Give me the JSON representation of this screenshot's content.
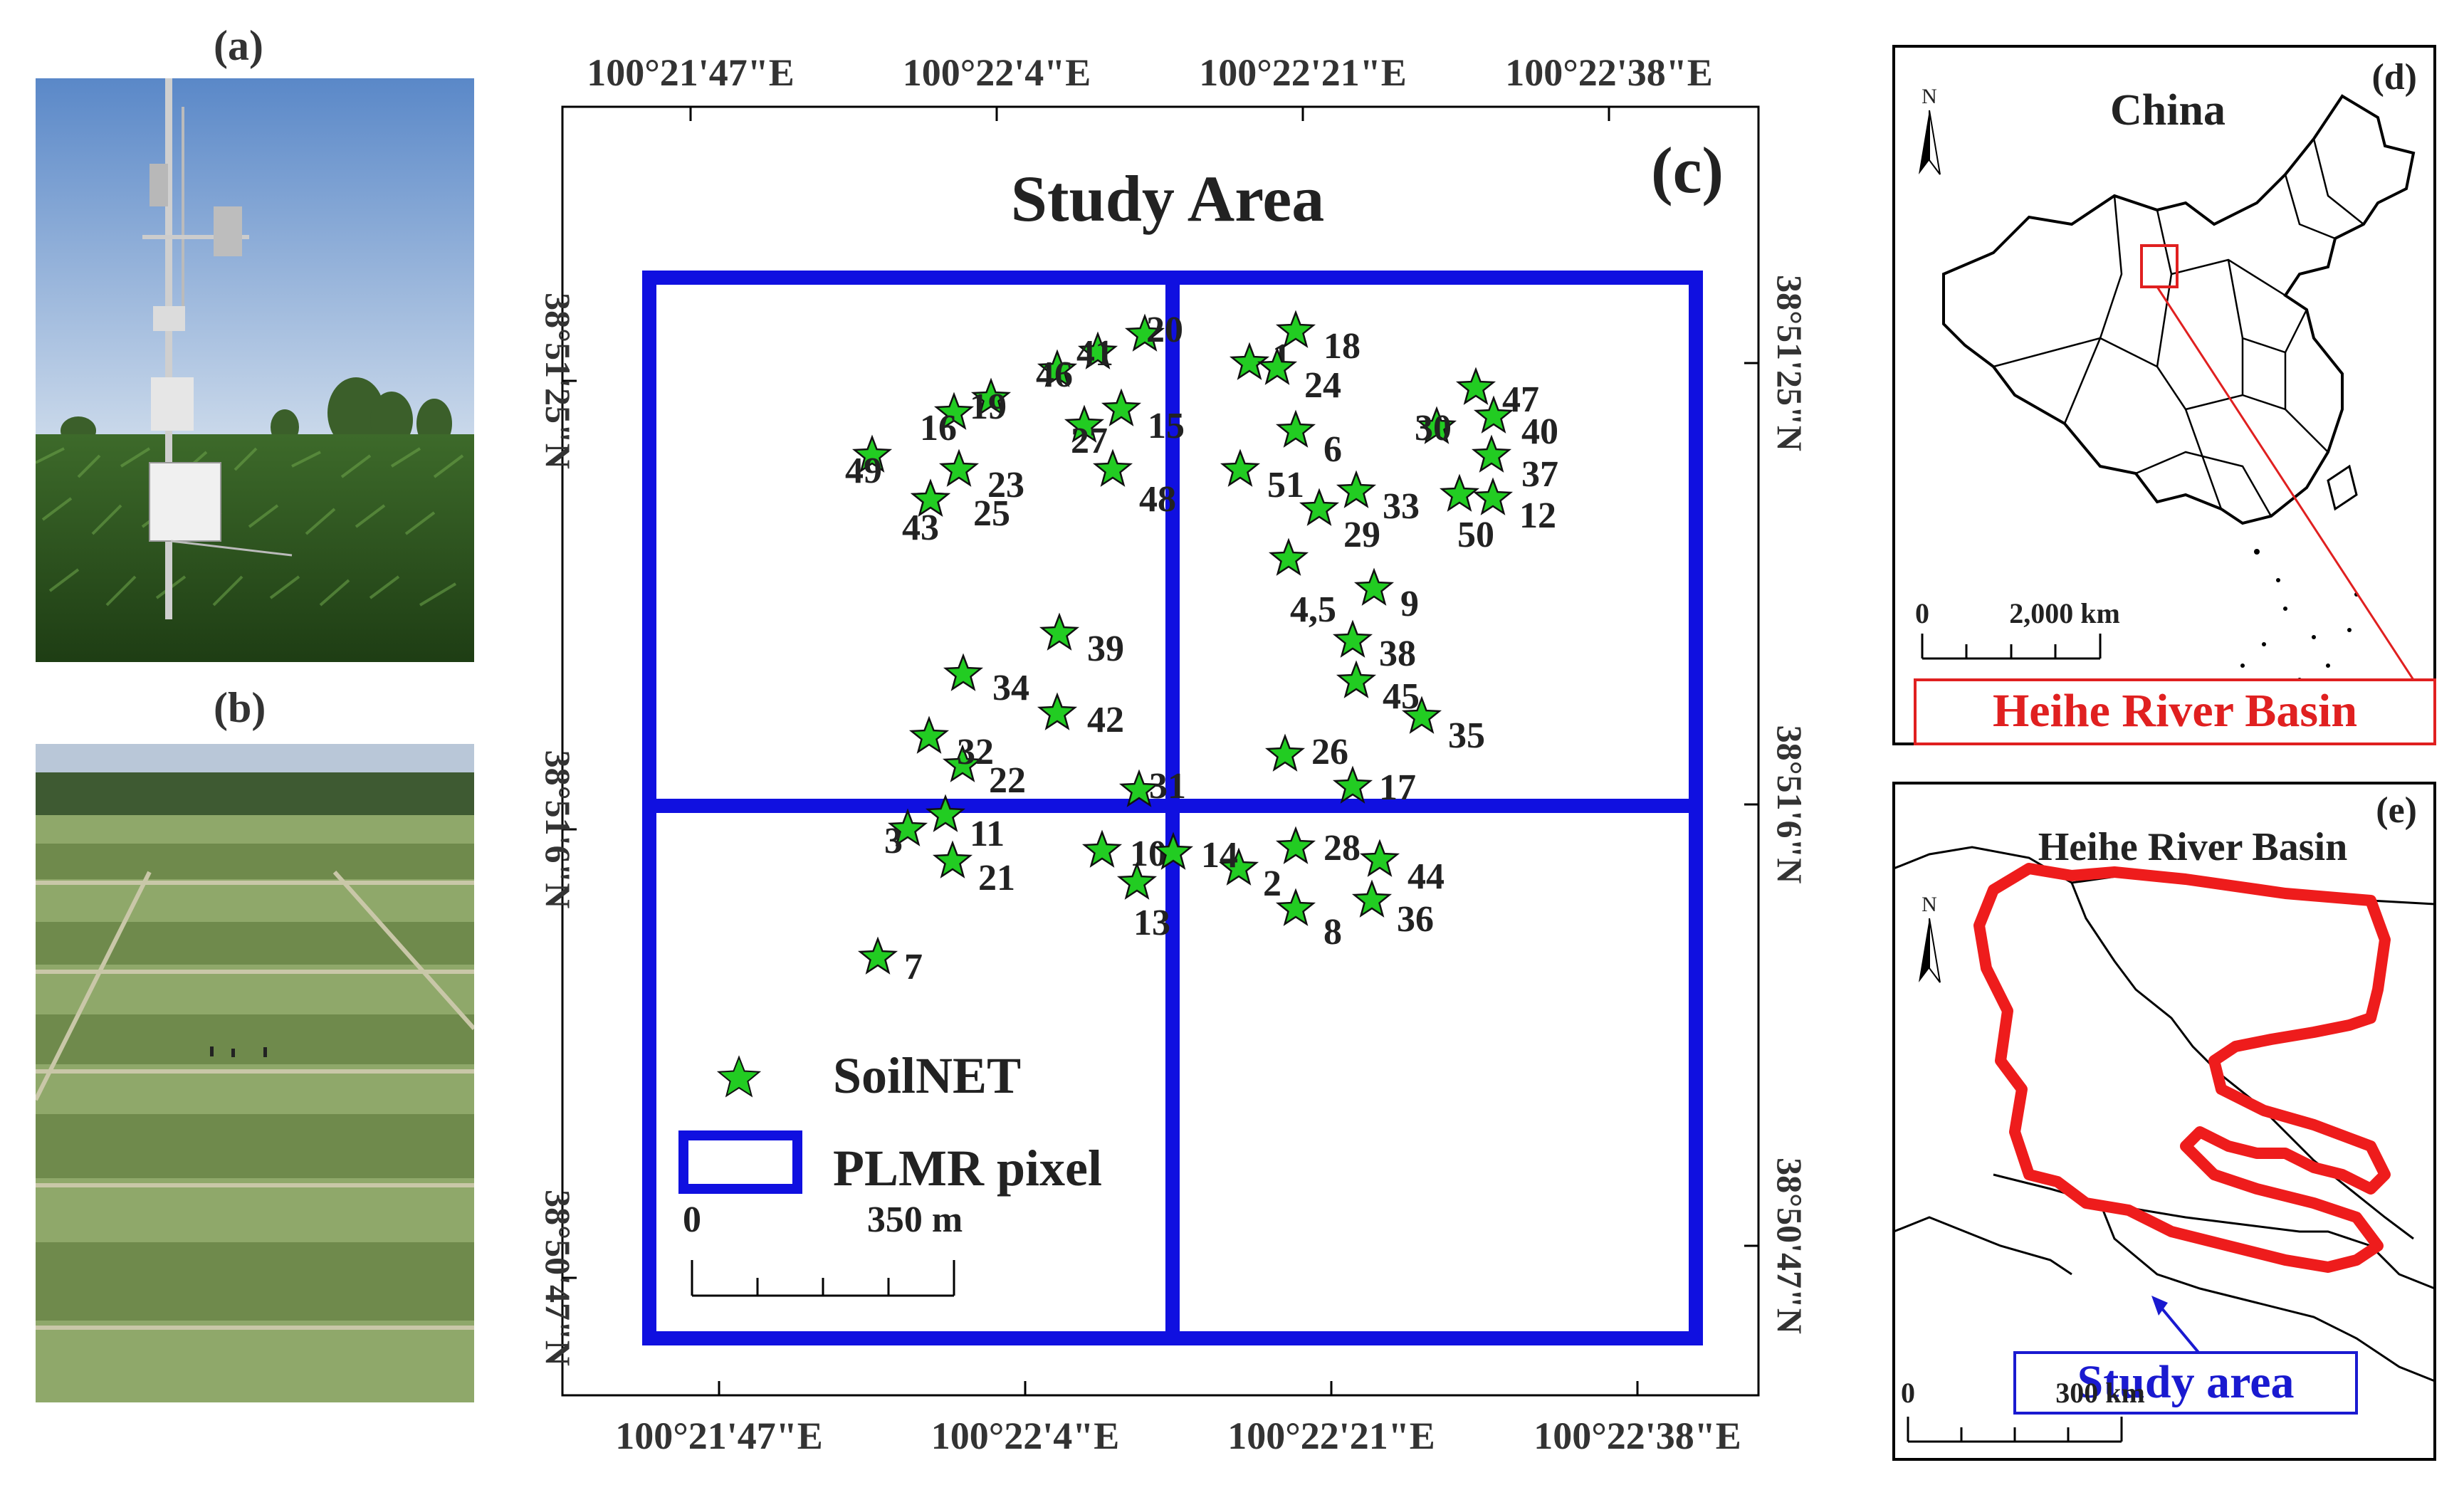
{
  "panels": {
    "a": {
      "label": "(a)"
    },
    "b": {
      "label": "(b)"
    },
    "c": {
      "label": "(c)"
    },
    "d": {
      "label": "(d)"
    },
    "e": {
      "label": "(e)"
    }
  },
  "study_map": {
    "title": "Study Area",
    "top_lon_ticks": [
      "100°21'47\"E",
      "100°22'4\"E",
      "100°22'21\"E",
      "100°22'38\"E"
    ],
    "bottom_lon_ticks": [
      "100°21'47\"E",
      "100°22'4\"E",
      "100°22'21\"E",
      "100°22'38\"E"
    ],
    "left_lat_ticks": [
      "38°51'25\"N",
      "38°51'6\"N",
      "38°50'47\"N"
    ],
    "right_lat_ticks": [
      "38°51'25\"N",
      "38°51'6\"N",
      "38°50'47\"N"
    ],
    "legend": {
      "soilnet": "SoilNET",
      "plmr": "PLMR pixel"
    },
    "scale": {
      "zero": "0",
      "end": "350 m"
    },
    "station_color": "#22cc22",
    "pixel_color": "#1010e0",
    "stations": [
      {
        "label": "1"
      },
      {
        "label": "2"
      },
      {
        "label": "3"
      },
      {
        "label": "4,5"
      },
      {
        "label": "6"
      },
      {
        "label": "7"
      },
      {
        "label": "8"
      },
      {
        "label": "9"
      },
      {
        "label": "10"
      },
      {
        "label": "11"
      },
      {
        "label": "12"
      },
      {
        "label": "13"
      },
      {
        "label": "14"
      },
      {
        "label": "15"
      },
      {
        "label": "16"
      },
      {
        "label": "17"
      },
      {
        "label": "18"
      },
      {
        "label": "19"
      },
      {
        "label": "20"
      },
      {
        "label": "21"
      },
      {
        "label": "22"
      },
      {
        "label": "23"
      },
      {
        "label": "24"
      },
      {
        "label": "25"
      },
      {
        "label": "26"
      },
      {
        "label": "27"
      },
      {
        "label": "28"
      },
      {
        "label": "29"
      },
      {
        "label": "30"
      },
      {
        "label": "31"
      },
      {
        "label": "32"
      },
      {
        "label": "33"
      },
      {
        "label": "34"
      },
      {
        "label": "35"
      },
      {
        "label": "36"
      },
      {
        "label": "37"
      },
      {
        "label": "38"
      },
      {
        "label": "39"
      },
      {
        "label": "40"
      },
      {
        "label": "41"
      },
      {
        "label": "42"
      },
      {
        "label": "43"
      },
      {
        "label": "44"
      },
      {
        "label": "45"
      },
      {
        "label": "46"
      },
      {
        "label": "47"
      },
      {
        "label": "48"
      },
      {
        "label": "49"
      },
      {
        "label": "50"
      },
      {
        "label": "51"
      }
    ]
  },
  "china_map": {
    "label": "China",
    "north": "N",
    "scale": {
      "zero": "0",
      "end": "2,000 km"
    },
    "callout": "Heihe River Basin",
    "callout_color": "#e02020"
  },
  "basin_map": {
    "label": "Heihe River Basin",
    "north": "N",
    "scale": {
      "zero": "0",
      "end": "300 km"
    },
    "callout": "Study area",
    "callout_color": "#1a1ad0",
    "basin_color": "#ee1c1c"
  }
}
